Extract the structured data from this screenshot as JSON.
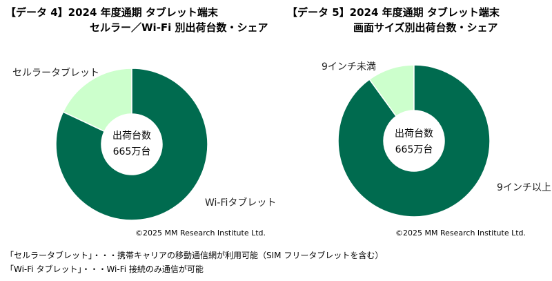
{
  "charts": [
    {
      "title_line1": "【データ 4】2024 年度通期 タブレット端末",
      "title_line2": "セルラー／Wi-Fi 別出荷台数・シェア",
      "copyright": "©2025 MM Research Institute Ltd."
    },
    {
      "title_line1": "【データ 5】2024 年度通期 タブレット端末",
      "title_line2": "画面サイズ別出荷台数・シェア",
      "copyright": "©2025 MM Research Institute Ltd."
    }
  ],
  "notes": [
    "「セルラータブレット」・・・携帯キャリアの移動通信網が利用可能（SIM フリータブレットを含む）",
    "「Wi-Fi タブレット」・・・Wi-Fi 接続のみ通信が可能"
  ],
  "colors": {
    "dark": "#006b4f",
    "light": "#ccffcc",
    "stroke": "#ffffff"
  },
  "chart_data": [
    {
      "type": "pie",
      "style": "donut",
      "center_label": [
        "出荷台数",
        "665万台"
      ],
      "slices": [
        {
          "label": "Wi-Fiタブレット",
          "value": 82,
          "color": "#006b4f"
        },
        {
          "label": "セルラータブレット",
          "value": 18,
          "color": "#ccffcc"
        }
      ]
    },
    {
      "type": "pie",
      "style": "donut",
      "center_label": [
        "出荷台数",
        "665万台"
      ],
      "slices": [
        {
          "label": "9インチ以上",
          "value": 90,
          "color": "#006b4f"
        },
        {
          "label": "9インチ未満",
          "value": 10,
          "color": "#ccffcc"
        }
      ]
    }
  ]
}
